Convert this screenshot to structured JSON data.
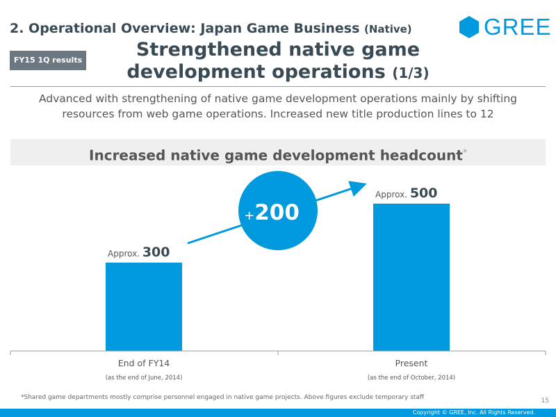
{
  "header": {
    "section_title": "2. Operational Overview: Japan Game Business",
    "section_sub": "(Native)",
    "badge": "FY15 1Q results",
    "headline": "Strengthened native game development operations",
    "headline_part": "(1/3)",
    "logo_text": "GREE"
  },
  "summary": "Advanced with strengthening of native game development operations mainly by shifting resources from web game operations. Increased new title production lines to 12",
  "banner": {
    "text": "Increased native game development headcount",
    "mark": "*"
  },
  "chart_data": {
    "type": "bar",
    "title": "Increased native game development headcount",
    "categories": [
      "End of FY14",
      "Present"
    ],
    "subcategories": [
      "(as the end of June, 2014)",
      "(as the end of October, 2014)"
    ],
    "values": [
      300,
      500
    ],
    "value_prefix": "Approx.",
    "ylim": [
      0,
      600
    ],
    "color": "#0099dd",
    "change_label": "+200",
    "change_sign": "+",
    "change_value": "200"
  },
  "footnote": "*Shared game departments mostly comprise personnel engaged in native game projects. Above figures exclude temporary staff",
  "page_number": "15",
  "copyright": "Copyright © GREE, Inc. All Rights Reserved.",
  "colors": {
    "accent": "#0099dd",
    "title": "#3a4a55",
    "badge": "#6b7880"
  }
}
